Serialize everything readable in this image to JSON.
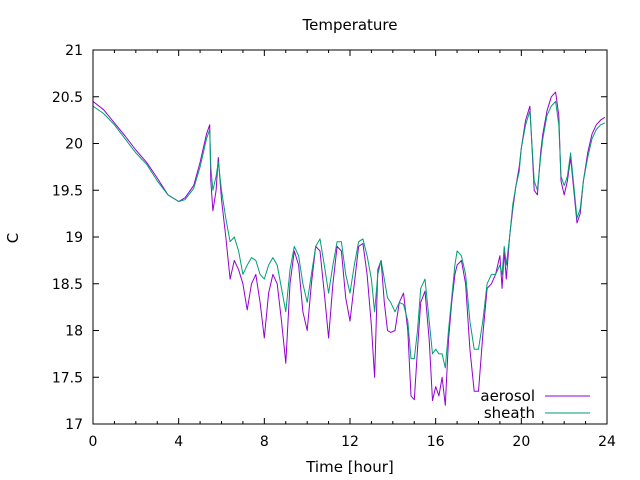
{
  "chart_data": {
    "type": "line",
    "title": "Temperature",
    "xlabel": "Time [hour]",
    "ylabel": "C",
    "xlim": [
      0,
      24
    ],
    "ylim": [
      17,
      21
    ],
    "xticks": [
      0,
      4,
      8,
      12,
      16,
      20,
      24
    ],
    "yticks": [
      17,
      17.5,
      18,
      18.5,
      19,
      19.5,
      20,
      20.5,
      21
    ],
    "ytick_labels": [
      "17",
      "17.5",
      "18",
      "18.5",
      "19",
      "19.5",
      "20",
      "20.5",
      "21"
    ],
    "grid": false,
    "legend_position": "bottom-right",
    "series": [
      {
        "name": "aerosol",
        "color": "#9400d3",
        "x": [
          0,
          0.5,
          1,
          1.5,
          2,
          2.5,
          3,
          3.5,
          4,
          4.3,
          4.7,
          5.0,
          5.3,
          5.45,
          5.5,
          5.6,
          5.75,
          5.85,
          6.0,
          6.2,
          6.4,
          6.6,
          6.8,
          7.0,
          7.2,
          7.4,
          7.6,
          7.8,
          8.0,
          8.2,
          8.4,
          8.6,
          8.8,
          9.0,
          9.2,
          9.4,
          9.6,
          9.8,
          10.0,
          10.2,
          10.4,
          10.6,
          10.8,
          11.0,
          11.2,
          11.4,
          11.6,
          11.8,
          12.0,
          12.2,
          12.4,
          12.6,
          12.8,
          13.0,
          13.15,
          13.3,
          13.45,
          13.6,
          13.75,
          13.9,
          14.1,
          14.3,
          14.5,
          14.7,
          14.85,
          15.0,
          15.15,
          15.3,
          15.5,
          15.7,
          15.85,
          16.0,
          16.15,
          16.3,
          16.45,
          16.6,
          16.75,
          16.9,
          17.0,
          17.2,
          17.4,
          17.6,
          17.8,
          18.0,
          18.2,
          18.4,
          18.6,
          18.8,
          19.0,
          19.1,
          19.2,
          19.3,
          19.45,
          19.6,
          19.75,
          19.9,
          20.0,
          20.2,
          20.4,
          20.6,
          20.75,
          20.9,
          21.0,
          21.2,
          21.4,
          21.6,
          21.75,
          21.85,
          22.0,
          22.15,
          22.3,
          22.45,
          22.6,
          22.75,
          22.9,
          23.1,
          23.3,
          23.5,
          23.7,
          23.9
        ],
        "values": [
          20.45,
          20.36,
          20.22,
          20.08,
          19.93,
          19.8,
          19.63,
          19.45,
          19.38,
          19.42,
          19.55,
          19.8,
          20.1,
          20.2,
          19.6,
          19.28,
          19.5,
          19.85,
          19.4,
          19.0,
          18.55,
          18.75,
          18.65,
          18.5,
          18.22,
          18.5,
          18.6,
          18.3,
          17.92,
          18.4,
          18.6,
          18.5,
          18.1,
          17.65,
          18.5,
          18.85,
          18.7,
          18.2,
          18.0,
          18.5,
          18.9,
          18.85,
          18.4,
          17.92,
          18.5,
          18.9,
          18.85,
          18.35,
          18.1,
          18.5,
          18.9,
          18.93,
          18.6,
          18.05,
          17.5,
          18.65,
          18.75,
          18.3,
          18.0,
          17.98,
          18.0,
          18.3,
          18.4,
          18.0,
          17.3,
          17.26,
          17.8,
          18.3,
          18.42,
          17.9,
          17.25,
          17.4,
          17.3,
          17.5,
          17.2,
          17.9,
          18.3,
          18.6,
          18.7,
          18.75,
          18.5,
          17.8,
          17.35,
          17.35,
          17.95,
          18.45,
          18.5,
          18.6,
          18.8,
          18.45,
          18.85,
          18.55,
          19.0,
          19.3,
          19.55,
          19.75,
          19.95,
          20.25,
          20.4,
          19.5,
          19.45,
          19.9,
          20.1,
          20.35,
          20.5,
          20.55,
          20.3,
          19.6,
          19.45,
          19.6,
          19.85,
          19.5,
          19.15,
          19.25,
          19.6,
          19.9,
          20.1,
          20.2,
          20.25,
          20.28
        ]
      },
      {
        "name": "sheath",
        "color": "#009e73",
        "x": [
          0,
          0.5,
          1,
          1.5,
          2,
          2.5,
          3,
          3.5,
          4,
          4.3,
          4.7,
          5.0,
          5.3,
          5.45,
          5.5,
          5.6,
          5.75,
          5.85,
          6.0,
          6.2,
          6.4,
          6.6,
          6.8,
          7.0,
          7.2,
          7.4,
          7.6,
          7.8,
          8.0,
          8.2,
          8.4,
          8.6,
          8.8,
          9.0,
          9.2,
          9.4,
          9.6,
          9.8,
          10.0,
          10.2,
          10.4,
          10.6,
          10.8,
          11.0,
          11.2,
          11.4,
          11.6,
          11.8,
          12.0,
          12.2,
          12.4,
          12.6,
          12.8,
          13.0,
          13.15,
          13.3,
          13.45,
          13.6,
          13.75,
          13.9,
          14.1,
          14.3,
          14.5,
          14.7,
          14.85,
          15.0,
          15.15,
          15.3,
          15.5,
          15.7,
          15.85,
          16.0,
          16.15,
          16.3,
          16.45,
          16.6,
          16.75,
          16.9,
          17.0,
          17.2,
          17.4,
          17.6,
          17.8,
          18.0,
          18.2,
          18.4,
          18.6,
          18.8,
          19.0,
          19.1,
          19.2,
          19.3,
          19.45,
          19.6,
          19.75,
          19.9,
          20.0,
          20.2,
          20.4,
          20.6,
          20.75,
          20.9,
          21.0,
          21.2,
          21.4,
          21.6,
          21.75,
          21.85,
          22.0,
          22.15,
          22.3,
          22.45,
          22.6,
          22.75,
          22.9,
          23.1,
          23.3,
          23.5,
          23.7,
          23.9
        ],
        "values": [
          20.4,
          20.32,
          20.2,
          20.05,
          19.9,
          19.78,
          19.6,
          19.45,
          19.38,
          19.4,
          19.52,
          19.75,
          20.05,
          20.15,
          19.75,
          19.5,
          19.65,
          19.8,
          19.5,
          19.2,
          18.95,
          19.0,
          18.85,
          18.6,
          18.7,
          18.78,
          18.75,
          18.6,
          18.55,
          18.7,
          18.78,
          18.7,
          18.45,
          18.2,
          18.65,
          18.9,
          18.8,
          18.5,
          18.3,
          18.6,
          18.9,
          18.98,
          18.7,
          18.4,
          18.7,
          18.95,
          18.95,
          18.6,
          18.4,
          18.7,
          18.95,
          18.98,
          18.8,
          18.55,
          18.2,
          18.6,
          18.75,
          18.55,
          18.35,
          18.3,
          18.2,
          18.3,
          18.28,
          18.1,
          17.7,
          17.7,
          18.0,
          18.45,
          18.55,
          18.1,
          17.75,
          17.8,
          17.75,
          17.75,
          17.6,
          18.0,
          18.35,
          18.7,
          18.85,
          18.8,
          18.6,
          18.1,
          17.8,
          17.8,
          18.1,
          18.5,
          18.6,
          18.6,
          18.7,
          18.6,
          18.9,
          18.7,
          19.0,
          19.35,
          19.55,
          19.7,
          19.95,
          20.2,
          20.35,
          19.6,
          19.5,
          19.85,
          20.05,
          20.3,
          20.4,
          20.45,
          20.2,
          19.65,
          19.55,
          19.65,
          19.9,
          19.55,
          19.2,
          19.3,
          19.6,
          19.85,
          20.05,
          20.15,
          20.2,
          20.22
        ]
      }
    ]
  }
}
